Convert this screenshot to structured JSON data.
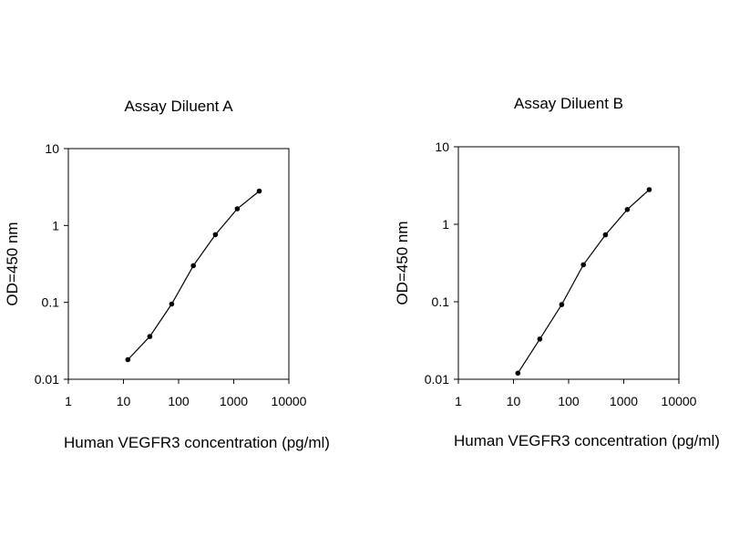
{
  "chart_data": [
    {
      "type": "line",
      "title": "Assay Diluent A",
      "xlabel": "Human VEGFR3 concentration (pg/ml)",
      "ylabel": "OD=450 nm",
      "x_scale": "log",
      "y_scale": "log",
      "xlim": [
        1,
        10000
      ],
      "ylim": [
        0.01,
        10
      ],
      "x_ticks": [
        "1",
        "10",
        "100",
        "1000",
        "10000"
      ],
      "y_ticks": [
        "0.01",
        "0.1",
        "1",
        "10"
      ],
      "grid": false,
      "legend": "none",
      "series": [
        {
          "x": [
            12,
            30,
            75,
            185,
            465,
            1160,
            2900
          ],
          "values": [
            0.018,
            0.036,
            0.095,
            0.3,
            0.76,
            1.65,
            2.8
          ]
        }
      ]
    },
    {
      "type": "line",
      "title": "Assay Diluent B",
      "xlabel": "Human VEGFR3 concentration (pg/ml)",
      "ylabel": "OD=450 nm",
      "x_scale": "log",
      "y_scale": "log",
      "xlim": [
        1,
        10000
      ],
      "ylim": [
        0.01,
        10
      ],
      "x_ticks": [
        "1",
        "10",
        "100",
        "1000",
        "10000"
      ],
      "y_ticks": [
        "0.01",
        "0.1",
        "1",
        "10"
      ],
      "grid": false,
      "legend": "none",
      "series": [
        {
          "x": [
            12,
            30,
            75,
            185,
            465,
            1160,
            2900
          ],
          "values": [
            0.012,
            0.033,
            0.092,
            0.3,
            0.73,
            1.55,
            2.8
          ]
        }
      ]
    }
  ]
}
